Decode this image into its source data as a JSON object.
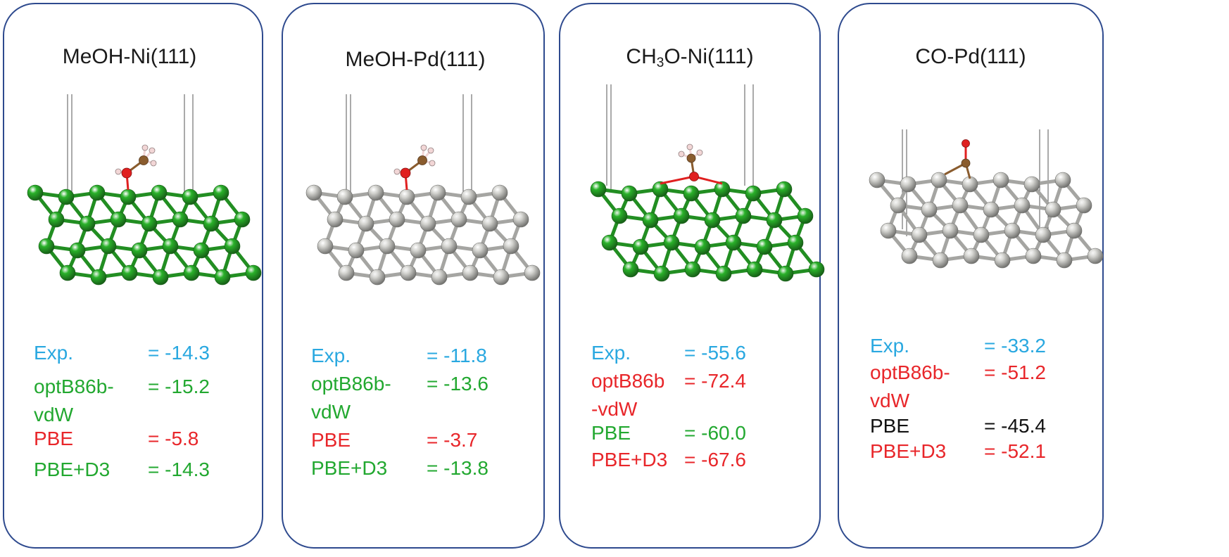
{
  "colors": {
    "border": "#2e4a8e",
    "exp": "#29a8e0",
    "good": "#22a830",
    "bad": "#e8262a",
    "neutral": "#111111",
    "ni_atom": "#2ab12a",
    "pd_atom": "#d4d4d0",
    "oxygen": "#e02020",
    "carbon": "#8a5c2e",
    "hydrogen": "#f2d6d6"
  },
  "panels": [
    {
      "title_main": "MeOH-Ni(111)",
      "title_sub": "",
      "title_rest": "",
      "metal": "Ni",
      "adsorbate": "MeOH",
      "rows": [
        {
          "method": "Exp.",
          "value": "= -14.3",
          "color": "exp"
        },
        {
          "method": "optB86b-\nvdW",
          "value": "= -15.2",
          "color": "good"
        },
        {
          "method": "PBE",
          "value": "= -5.8",
          "color": "bad"
        },
        {
          "method": "PBE+D3",
          "value": "= -14.3",
          "color": "good"
        }
      ]
    },
    {
      "title_main": "MeOH-Pd(111)",
      "title_sub": "",
      "title_rest": "",
      "metal": "Pd",
      "adsorbate": "MeOH",
      "rows": [
        {
          "method": "Exp.",
          "value": "= -11.8",
          "color": "exp"
        },
        {
          "method": "optB86b-\nvdW",
          "value": "= -13.6",
          "color": "good"
        },
        {
          "method": "PBE",
          "value": "= -3.7",
          "color": "bad"
        },
        {
          "method": "PBE+D3",
          "value": "= -13.8",
          "color": "good"
        }
      ]
    },
    {
      "title_main": "CH",
      "title_sub": "3",
      "title_rest": "O-Ni(111)",
      "metal": "Ni",
      "adsorbate": "CH3O",
      "rows": [
        {
          "method": "Exp.",
          "value": "= -55.6",
          "color": "exp"
        },
        {
          "method": "optB86b\n-vdW",
          "value": "= -72.4",
          "color": "bad"
        },
        {
          "method": "PBE",
          "value": "= -60.0",
          "color": "good"
        },
        {
          "method": "PBE+D3",
          "value": "= -67.6",
          "color": "bad"
        }
      ]
    },
    {
      "title_main": "CO-Pd(111)",
      "title_sub": "",
      "title_rest": "",
      "metal": "Pd",
      "adsorbate": "CO",
      "rows": [
        {
          "method": "Exp.",
          "value": "= -33.2",
          "color": "exp"
        },
        {
          "method": "optB86b-\nvdW",
          "value": "= -51.2",
          "color": "bad"
        },
        {
          "method": "PBE",
          "value": "= -45.4",
          "color": "neutral"
        },
        {
          "method": "PBE+D3",
          "value": "= -52.1",
          "color": "bad"
        }
      ]
    }
  ]
}
